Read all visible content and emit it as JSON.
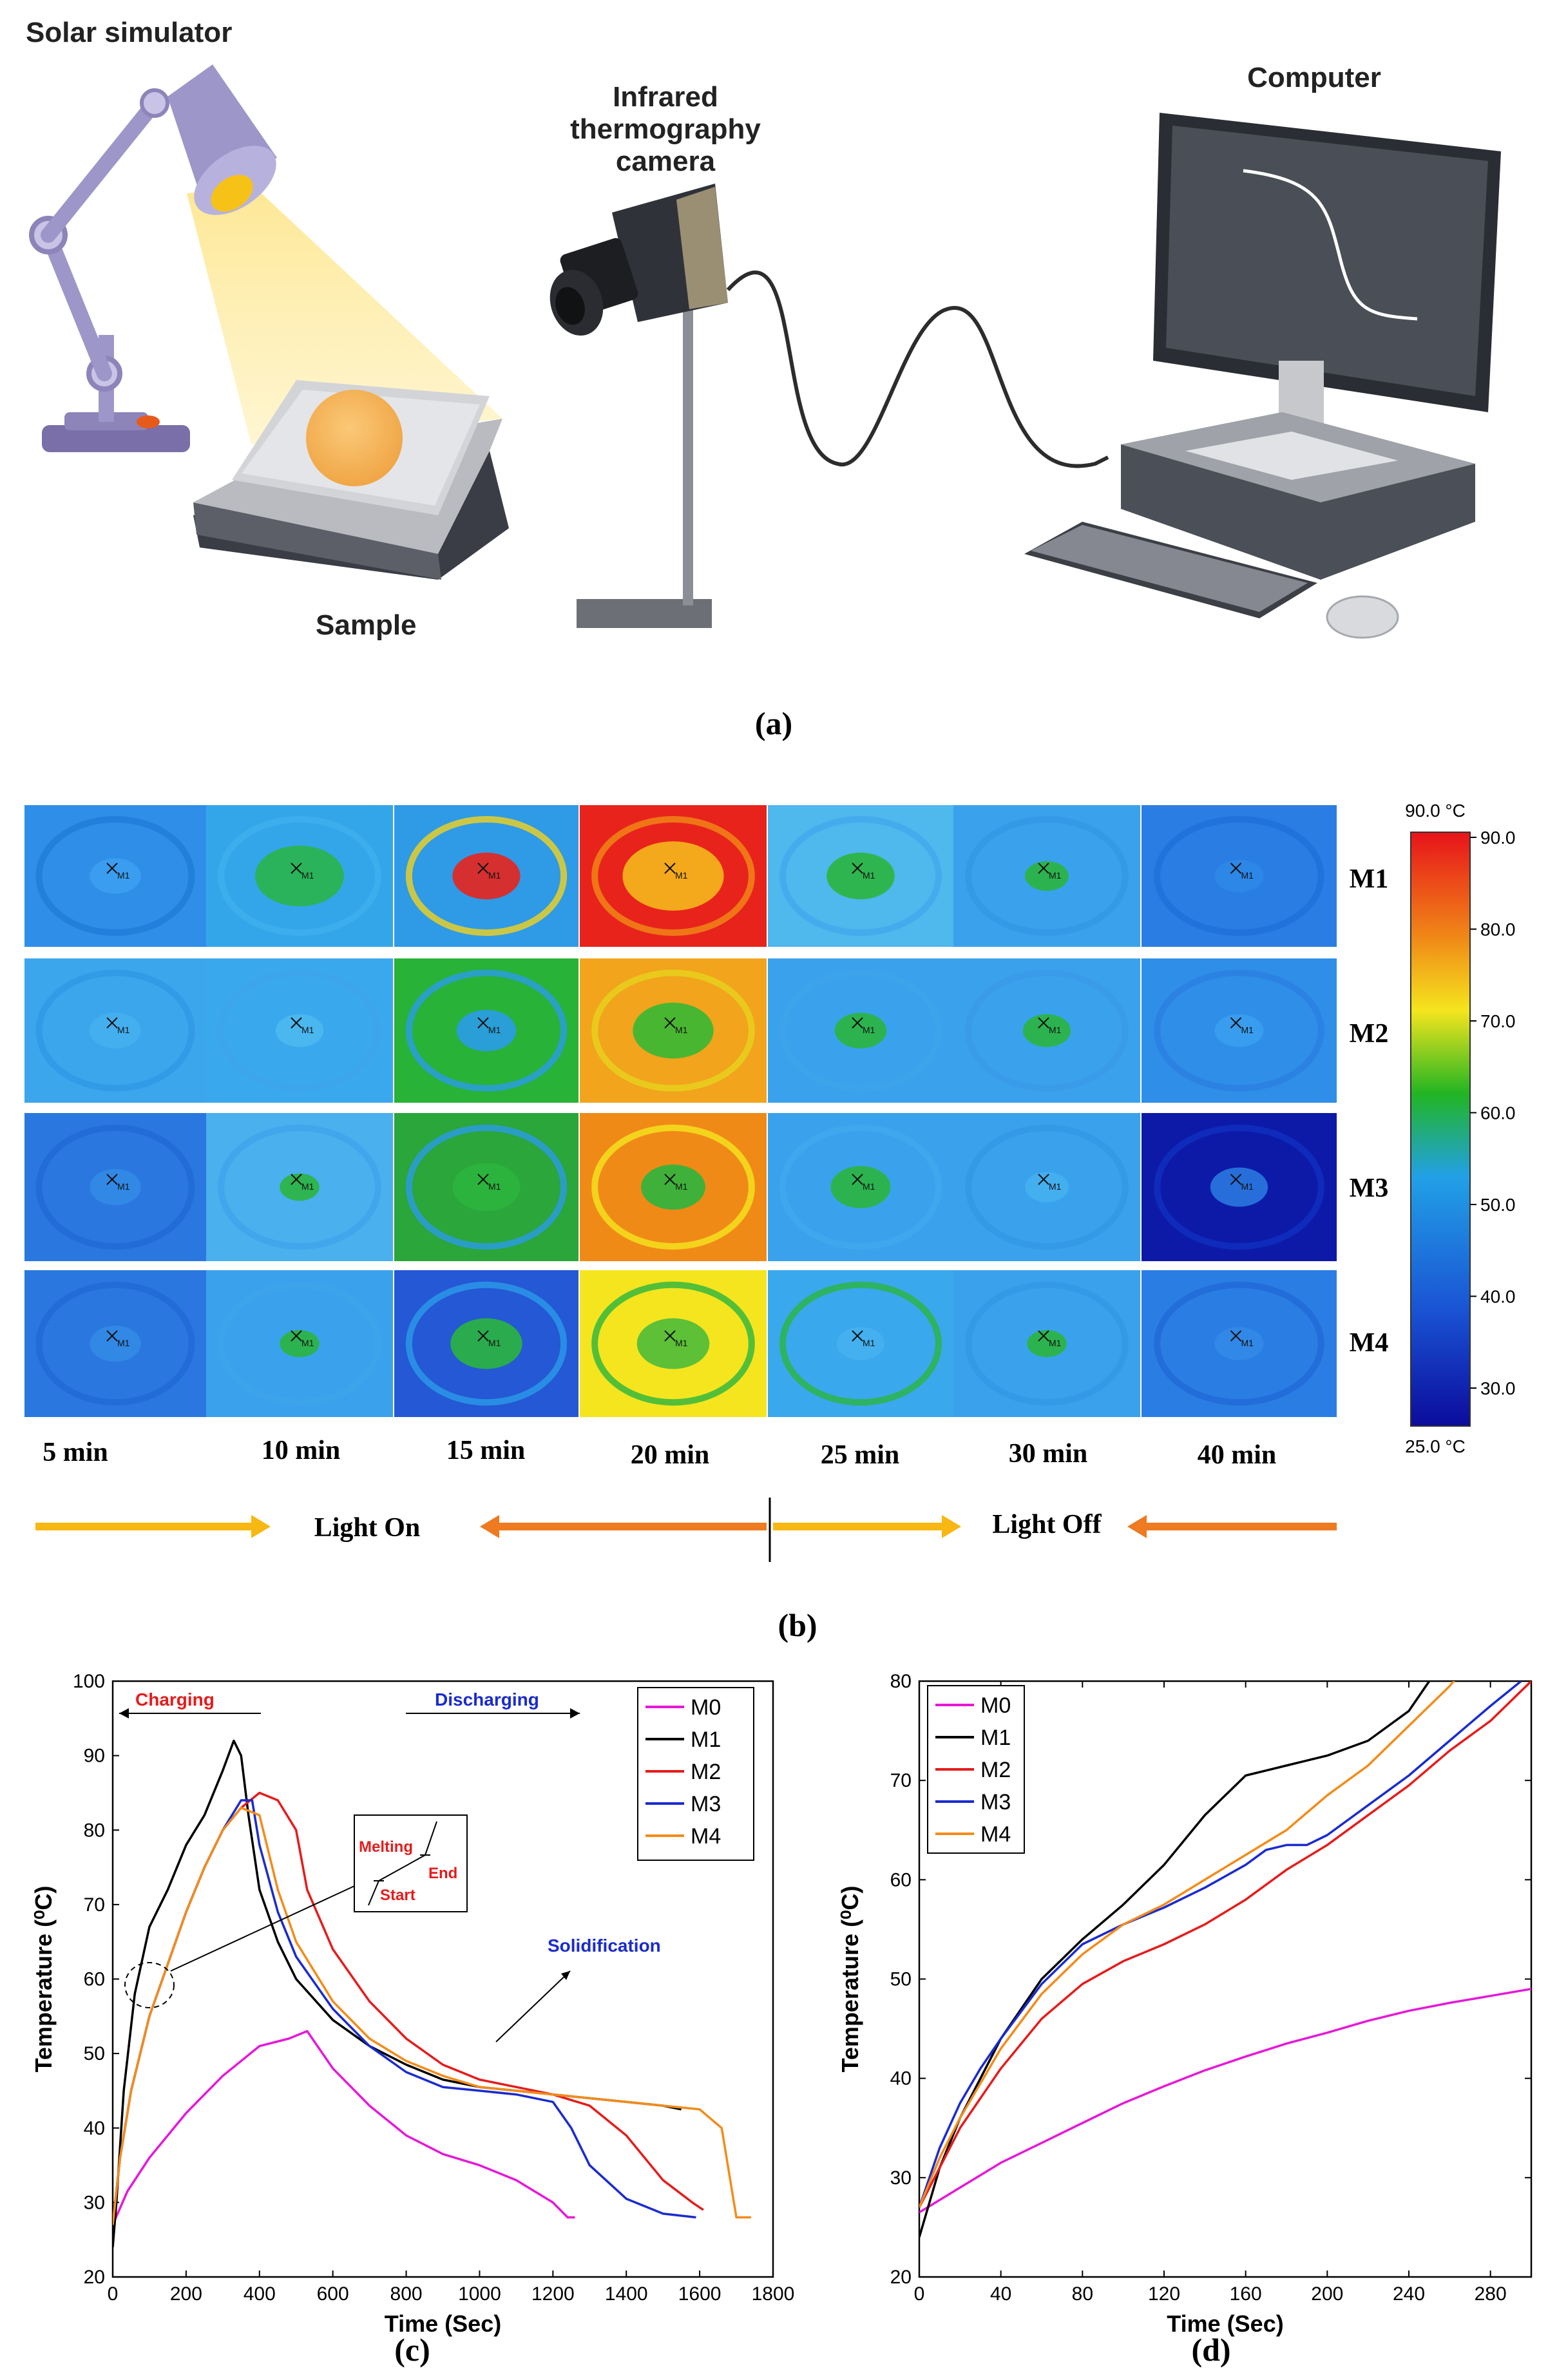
{
  "panel_a": {
    "label": "(a)",
    "solar_simulator": "Solar simulator",
    "camera": [
      "Infrared",
      "thermography",
      "camera"
    ],
    "computer": "Computer",
    "sample": "Sample"
  },
  "panel_b": {
    "label": "(b)",
    "marker": "M1",
    "rows": [
      "M1",
      "M2",
      "M3",
      "M4"
    ],
    "times": [
      "5 min",
      "10 min",
      "15 min",
      "20 min",
      "25 min",
      "30 min",
      "40 min"
    ],
    "colorbar": {
      "max_label": "90.0 °C",
      "min_label": "25.0 °C",
      "ticks": [
        "90.0",
        "80.0",
        "70.0",
        "60.0",
        "50.0",
        "40.0",
        "30.0"
      ]
    },
    "light_on": "Light On",
    "light_off": "Light Off",
    "colors": {
      "arrow_light": "#f7b813",
      "arrow_dark": "#ee7a22"
    }
  },
  "panel_c": {
    "label": "(c)",
    "annotations": {
      "charging": "Charging",
      "discharging": "Discharging",
      "melting": "Melting",
      "start": "Start",
      "end": "End",
      "solidification": "Solidification"
    }
  },
  "panel_d": {
    "label": "(d)"
  },
  "chart_data": [
    {
      "type": "line",
      "title": "",
      "xlabel": "Time (Sec)",
      "ylabel": "Temperature (⁰C)",
      "xlim": [
        0,
        1800
      ],
      "ylim": [
        20,
        100
      ],
      "xticks": [
        0,
        200,
        400,
        600,
        800,
        1000,
        1200,
        1400,
        1600,
        1800
      ],
      "yticks": [
        20,
        30,
        40,
        50,
        60,
        70,
        80,
        90,
        100
      ],
      "legend": "top-right",
      "series": [
        {
          "name": "M0",
          "color": "#e619d6",
          "x": [
            0,
            40,
            100,
            200,
            300,
            400,
            480,
            530,
            600,
            700,
            800,
            900,
            1000,
            1100,
            1200,
            1240,
            1260
          ],
          "y": [
            27,
            31.5,
            36,
            42,
            47,
            51,
            52,
            53,
            48,
            43,
            39,
            36.5,
            35,
            33,
            30,
            28,
            28
          ]
        },
        {
          "name": "M1",
          "color": "#000000",
          "x": [
            0,
            10,
            30,
            60,
            100,
            150,
            200,
            250,
            300,
            330,
            350,
            370,
            400,
            450,
            500,
            600,
            700,
            800,
            900,
            1000,
            1100,
            1200,
            1300,
            1400,
            1500,
            1550
          ],
          "y": [
            24,
            30,
            45,
            58,
            67,
            72,
            78,
            82,
            88,
            92,
            90,
            82,
            72,
            65,
            60,
            54.5,
            51,
            48.5,
            46.5,
            45.5,
            45,
            44.5,
            44,
            43.5,
            43,
            42.5
          ]
        },
        {
          "name": "M2",
          "color": "#e51c1c",
          "x": [
            0,
            20,
            50,
            100,
            150,
            200,
            250,
            300,
            350,
            400,
            450,
            500,
            530,
            600,
            700,
            800,
            900,
            1000,
            1100,
            1200,
            1300,
            1400,
            1500,
            1580,
            1610
          ],
          "y": [
            27,
            36,
            45,
            55,
            62,
            69,
            75,
            80,
            83,
            85,
            84,
            80,
            72,
            64,
            57,
            52,
            48.5,
            46.5,
            45.5,
            44.5,
            43,
            39,
            33,
            30,
            29
          ]
        },
        {
          "name": "M3",
          "color": "#1a2bcf",
          "x": [
            0,
            20,
            50,
            100,
            150,
            200,
            250,
            300,
            350,
            380,
            400,
            450,
            500,
            600,
            700,
            800,
            900,
            1000,
            1100,
            1200,
            1250,
            1300,
            1400,
            1500,
            1590
          ],
          "y": [
            27,
            36,
            45,
            55,
            62,
            69,
            75,
            80,
            84,
            84,
            78,
            69,
            63,
            56,
            51,
            47.5,
            45.5,
            45,
            44.5,
            43.5,
            40,
            35,
            30.5,
            28.5,
            28
          ]
        },
        {
          "name": "M4",
          "color": "#f28c1a",
          "x": [
            0,
            20,
            50,
            100,
            150,
            200,
            250,
            300,
            350,
            400,
            450,
            500,
            600,
            700,
            800,
            900,
            1000,
            1100,
            1200,
            1300,
            1400,
            1500,
            1600,
            1660,
            1700,
            1740
          ],
          "y": [
            27,
            36,
            45,
            55,
            62,
            69,
            75,
            80,
            83,
            82,
            72,
            65,
            57,
            52,
            49,
            47,
            45.5,
            45,
            44.5,
            44,
            43.5,
            43,
            42.5,
            40,
            28,
            28
          ]
        }
      ]
    },
    {
      "type": "line",
      "title": "",
      "xlabel": "Time (Sec)",
      "ylabel": "Temperature (⁰C)",
      "xlim": [
        0,
        300
      ],
      "ylim": [
        20,
        80
      ],
      "xticks": [
        0,
        40,
        80,
        120,
        160,
        200,
        240,
        280
      ],
      "yticks": [
        20,
        30,
        40,
        50,
        60,
        70,
        80
      ],
      "legend": "top-left",
      "series": [
        {
          "name": "M0",
          "color": "#e619d6",
          "x": [
            0,
            20,
            40,
            60,
            80,
            100,
            120,
            140,
            160,
            180,
            200,
            220,
            240,
            260,
            280,
            300
          ],
          "y": [
            26.5,
            29,
            31.5,
            33.5,
            35.5,
            37.5,
            39.2,
            40.8,
            42.2,
            43.5,
            44.6,
            45.8,
            46.8,
            47.6,
            48.3,
            49
          ]
        },
        {
          "name": "M1",
          "color": "#000000",
          "x": [
            0,
            10,
            20,
            30,
            40,
            60,
            80,
            100,
            120,
            140,
            160,
            170,
            180,
            200,
            220,
            240,
            250,
            260,
            270
          ],
          "y": [
            24,
            31,
            36,
            40,
            44,
            50,
            54,
            57.5,
            61.5,
            66.5,
            70.5,
            71,
            71.5,
            72.5,
            74,
            77,
            80,
            82,
            84
          ]
        },
        {
          "name": "M2",
          "color": "#e51c1c",
          "x": [
            0,
            10,
            20,
            30,
            40,
            60,
            80,
            100,
            120,
            140,
            160,
            180,
            200,
            220,
            240,
            260,
            280,
            300
          ],
          "y": [
            27,
            31,
            35,
            38,
            41,
            46,
            49.5,
            51.8,
            53.5,
            55.5,
            58,
            61,
            63.5,
            66.5,
            69.5,
            73,
            76,
            80
          ]
        },
        {
          "name": "M3",
          "color": "#1a2bcf",
          "x": [
            0,
            10,
            20,
            30,
            40,
            60,
            80,
            100,
            120,
            140,
            160,
            170,
            180,
            190,
            200,
            220,
            240,
            260,
            280,
            295
          ],
          "y": [
            27,
            33,
            37.5,
            41,
            44,
            49.5,
            53.5,
            55.5,
            57.2,
            59.2,
            61.5,
            63,
            63.5,
            63.5,
            64.5,
            67.5,
            70.5,
            74,
            77.5,
            80
          ]
        },
        {
          "name": "M4",
          "color": "#f28c1a",
          "x": [
            0,
            10,
            20,
            30,
            40,
            60,
            80,
            100,
            120,
            140,
            160,
            180,
            200,
            220,
            240,
            260,
            270
          ],
          "y": [
            27,
            32,
            36,
            39.5,
            43,
            48.5,
            52.5,
            55.5,
            57.5,
            60,
            62.5,
            65,
            68.5,
            71.5,
            75.5,
            79.5,
            82
          ]
        }
      ]
    }
  ]
}
